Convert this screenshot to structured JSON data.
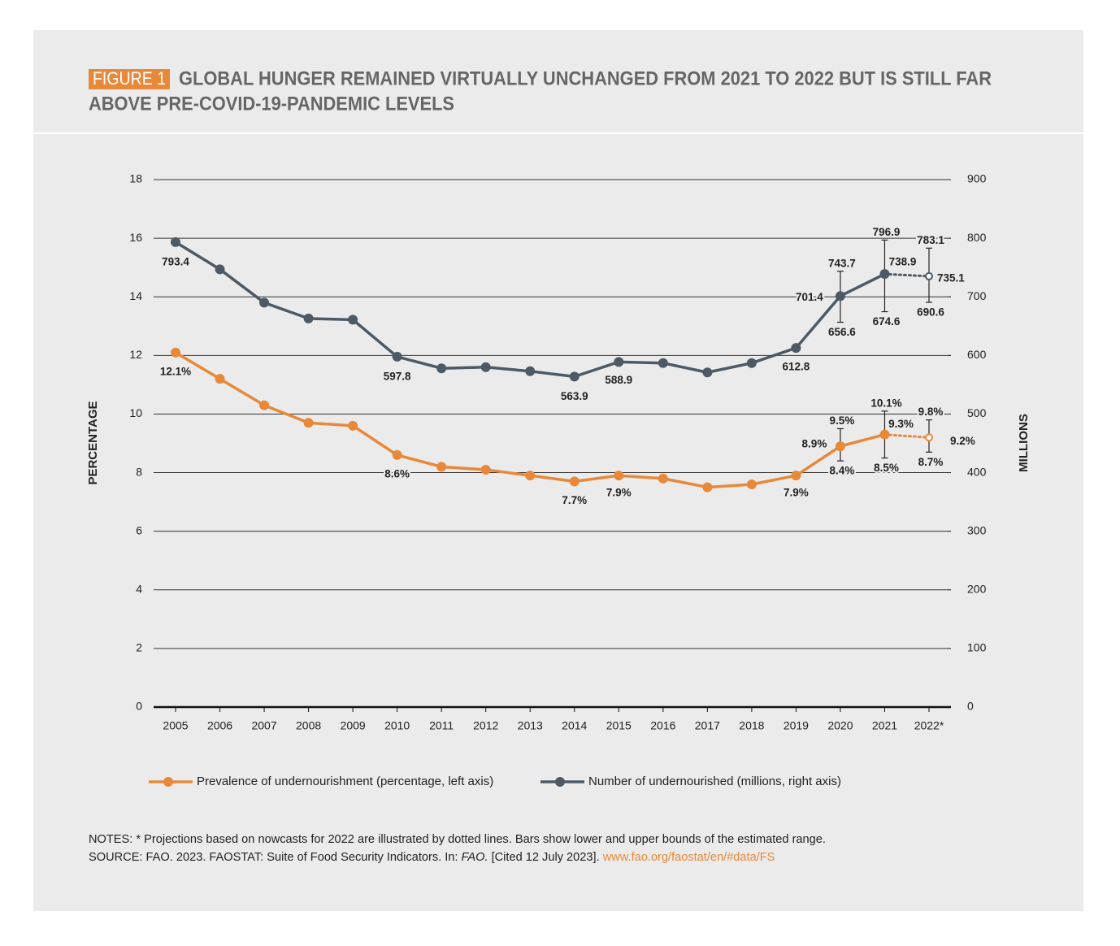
{
  "figure_label": "FIGURE 1",
  "title_lines": [
    "GLOBAL HUNGER REMAINED VIRTUALLY UNCHANGED FROM 2021 TO 2022 BUT IS STILL FAR",
    "ABOVE PRE-COVID-19-PANDEMIC LEVELS"
  ],
  "chart_data": {
    "type": "line",
    "categories": [
      "2005",
      "2006",
      "2007",
      "2008",
      "2009",
      "2010",
      "2011",
      "2012",
      "2013",
      "2014",
      "2015",
      "2016",
      "2017",
      "2018",
      "2019",
      "2020",
      "2021",
      "2022*"
    ],
    "ylabel": "PERCENTAGE",
    "y2label": "MILLIONS",
    "ylim": [
      0,
      18
    ],
    "yticks": [
      0,
      2,
      4,
      6,
      8,
      10,
      12,
      14,
      16,
      18
    ],
    "y2lim": [
      0,
      900
    ],
    "y2ticks": [
      0,
      100,
      200,
      300,
      400,
      500,
      600,
      700,
      800,
      900
    ],
    "grid": true,
    "last_projected": true,
    "series": [
      {
        "name": "Prevalence of undernourishment (percentage, left axis)",
        "color": "#e8893a",
        "axis": "y",
        "values": [
          12.1,
          11.2,
          10.3,
          9.7,
          9.6,
          8.6,
          8.2,
          8.1,
          7.9,
          7.7,
          7.9,
          7.8,
          7.5,
          7.6,
          7.9,
          8.9,
          9.3,
          9.2
        ],
        "value_labels": [
          "12.1%",
          null,
          null,
          null,
          null,
          "8.6%",
          null,
          null,
          null,
          "7.7%",
          "7.9%",
          null,
          null,
          null,
          "7.9%",
          "8.9%",
          "9.3%",
          "9.2%"
        ],
        "lower": [
          null,
          null,
          null,
          null,
          null,
          null,
          null,
          null,
          null,
          null,
          null,
          null,
          null,
          null,
          null,
          8.4,
          8.5,
          8.7
        ],
        "lower_labels": [
          null,
          null,
          null,
          null,
          null,
          null,
          null,
          null,
          null,
          null,
          null,
          null,
          null,
          null,
          null,
          "8.4%",
          "8.5%",
          "8.7%"
        ],
        "upper": [
          null,
          null,
          null,
          null,
          null,
          null,
          null,
          null,
          null,
          null,
          null,
          null,
          null,
          null,
          null,
          9.5,
          10.1,
          9.8
        ],
        "upper_labels": [
          null,
          null,
          null,
          null,
          null,
          null,
          null,
          null,
          null,
          null,
          null,
          null,
          null,
          null,
          null,
          "9.5%",
          "10.1%",
          "9.8%"
        ]
      },
      {
        "name": "Number of undernourished (millions, right axis)",
        "color": "#4d5a65",
        "axis": "y2",
        "values": [
          793.4,
          747,
          690,
          663,
          661,
          597.8,
          578,
          580,
          573,
          563.9,
          588.9,
          587,
          571,
          587,
          612.8,
          701.4,
          738.9,
          735.1
        ],
        "value_labels": [
          "793.4",
          null,
          null,
          null,
          null,
          "597.8",
          null,
          null,
          null,
          "563.9",
          "588.9",
          null,
          null,
          null,
          "612.8",
          "701.4",
          "738.9",
          "735.1"
        ],
        "lower": [
          null,
          null,
          null,
          null,
          null,
          null,
          null,
          null,
          null,
          null,
          null,
          null,
          null,
          null,
          null,
          656.6,
          674.6,
          690.6
        ],
        "lower_labels": [
          null,
          null,
          null,
          null,
          null,
          null,
          null,
          null,
          null,
          null,
          null,
          null,
          null,
          null,
          null,
          "656.6",
          "674.6",
          "690.6"
        ],
        "upper": [
          null,
          null,
          null,
          null,
          null,
          null,
          null,
          null,
          null,
          null,
          null,
          null,
          null,
          null,
          null,
          743.7,
          796.9,
          783.1
        ],
        "upper_labels": [
          null,
          null,
          null,
          null,
          null,
          null,
          null,
          null,
          null,
          null,
          null,
          null,
          null,
          null,
          null,
          "743.7",
          "796.9",
          "783.1"
        ]
      }
    ],
    "notes": "NOTES: * Projections based on nowcasts for 2022 are illustrated by dotted lines. Bars show lower and upper bounds of the estimated range.",
    "source": "SOURCE: FAO. 2023. FAOSTAT: Suite of Food Security Indicators. In: ",
    "source_italic": "FAO.",
    "source_cited": " [Cited 12 July 2023]. ",
    "source_link": "www.fao.org/faostat/en/#data/FS"
  }
}
